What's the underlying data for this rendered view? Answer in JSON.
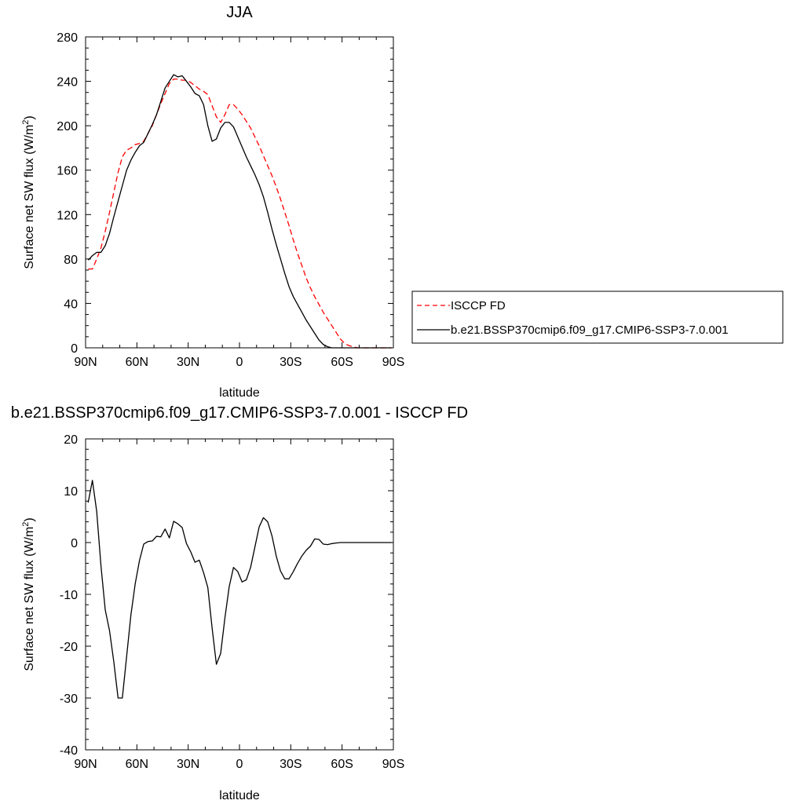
{
  "chart_data": [
    {
      "type": "line",
      "title": "JJA",
      "xlabel": "latitude",
      "ylabel": "Surface net SW flux (W/m²)",
      "xlim": [
        90,
        -90
      ],
      "ylim": [
        0,
        280
      ],
      "xticks": [
        90,
        60,
        30,
        0,
        -30,
        -60,
        -90
      ],
      "xtick_labels": [
        "90N",
        "60N",
        "30N",
        "0",
        "30S",
        "60S",
        "90S"
      ],
      "yticks": [
        0,
        40,
        80,
        120,
        160,
        200,
        240,
        280
      ],
      "ytick_labels": [
        "0",
        "40",
        "80",
        "120",
        "160",
        "200",
        "240",
        "280"
      ],
      "legend_position": "right",
      "series": [
        {
          "name": "ISCCP FD",
          "color": "#ff0000",
          "dash": "dashed",
          "x": [
            88.5,
            86,
            83.5,
            81,
            78.5,
            76,
            73.5,
            71,
            68.5,
            66,
            63.5,
            61,
            58.5,
            56,
            53.5,
            51,
            48.5,
            46,
            43.5,
            41,
            38.5,
            36,
            33.5,
            31,
            28.5,
            26,
            23.5,
            21,
            18.5,
            16,
            13.5,
            11,
            8.5,
            6,
            3.5,
            1,
            -1.5,
            -4,
            -6.5,
            -9,
            -11.5,
            -14,
            -16.5,
            -19,
            -21.5,
            -24,
            -26.5,
            -29,
            -31.5,
            -34,
            -36.5,
            -39,
            -41.5,
            -44,
            -46.5,
            -49,
            -51.5,
            -54,
            -56.5,
            -59,
            -61.5,
            -64,
            -66.5,
            -69,
            -71.5,
            -74,
            -76.5,
            -79,
            -81.5,
            -84,
            -86.5,
            -89
          ],
          "y": [
            71,
            71,
            80,
            90,
            105,
            122,
            140,
            158,
            172,
            178,
            180,
            183,
            184,
            186,
            193,
            200,
            210,
            220,
            229,
            238,
            242,
            242,
            241,
            241,
            239,
            236,
            233,
            231,
            228,
            218,
            208,
            203,
            210,
            219,
            219,
            215,
            210,
            204,
            198,
            190,
            182,
            173,
            164,
            155,
            145,
            134,
            122,
            110,
            97,
            85,
            74,
            63,
            54,
            46,
            39,
            32,
            26,
            20,
            14,
            8,
            4,
            2,
            1,
            0,
            0,
            0,
            0,
            0,
            0,
            0,
            0,
            0
          ]
        },
        {
          "name": "b.e21.BSSP370cmip6.f09_g17.CMIP6-SSP3-7.0.001",
          "color": "#000000",
          "dash": "solid",
          "x": [
            88.5,
            86,
            83.5,
            81,
            78.5,
            76,
            73.5,
            71,
            68.5,
            66,
            63.5,
            61,
            58.5,
            56,
            53.5,
            51,
            48.5,
            46,
            43.5,
            41,
            38.5,
            36,
            33.5,
            31,
            28.5,
            26,
            23.5,
            21,
            18.5,
            16,
            13.5,
            11,
            8.5,
            6,
            3.5,
            1,
            -1.5,
            -4,
            -6.5,
            -9,
            -11.5,
            -14,
            -16.5,
            -19,
            -21.5,
            -24,
            -26.5,
            -29,
            -31.5,
            -34,
            -36.5,
            -39,
            -41.5,
            -44,
            -46.5,
            -49,
            -51.5,
            -54,
            -56.5,
            -59,
            -61.5,
            -64,
            -66.5,
            -69,
            -71.5,
            -74,
            -76.5,
            -79,
            -81.5,
            -84,
            -86.5,
            -89
          ],
          "y": [
            79,
            83,
            86,
            86,
            92,
            103,
            118,
            132,
            146,
            160,
            169,
            176,
            182,
            185,
            193,
            201,
            210,
            222,
            234,
            240,
            246,
            244,
            245,
            240,
            235,
            229,
            227,
            219,
            200,
            186,
            188,
            198,
            203,
            203,
            199,
            190,
            181,
            172,
            164,
            156,
            147,
            136,
            122,
            107,
            93,
            80,
            67,
            55,
            46,
            39,
            32,
            25,
            19,
            13,
            7,
            3,
            1,
            0,
            0,
            0,
            0,
            0,
            0,
            0,
            0,
            0,
            0,
            0,
            0,
            0,
            0,
            0
          ]
        }
      ]
    },
    {
      "type": "line",
      "title": "b.e21.BSSP370cmip6.f09_g17.CMIP6-SSP3-7.0.001 - ISCCP FD",
      "xlabel": "latitude",
      "ylabel": "Surface net SW flux (W/m²)",
      "xlim": [
        90,
        -90
      ],
      "ylim": [
        -40,
        20
      ],
      "xticks": [
        90,
        60,
        30,
        0,
        -30,
        -60,
        -90
      ],
      "xtick_labels": [
        "90N",
        "60N",
        "30N",
        "0",
        "30S",
        "60S",
        "90S"
      ],
      "yticks": [
        -40,
        -30,
        -20,
        -10,
        0,
        10,
        20
      ],
      "ytick_labels": [
        "-40",
        "-30",
        "-20",
        "-10",
        "0",
        "10",
        "20"
      ],
      "series": [
        {
          "color": "#000000",
          "dash": "solid",
          "x": [
            88.5,
            86,
            83.5,
            81,
            78.5,
            76,
            73.5,
            71,
            68.5,
            66,
            63.5,
            61,
            58.5,
            56,
            53.5,
            51,
            48.5,
            46,
            43.5,
            41,
            38.5,
            36,
            33.5,
            31,
            28.5,
            26,
            23.5,
            21,
            18.5,
            16,
            13.5,
            11,
            8.5,
            6,
            3.5,
            1,
            -1.5,
            -4,
            -6.5,
            -9,
            -11.5,
            -14,
            -16.5,
            -19,
            -21.5,
            -24,
            -26.5,
            -29,
            -31.5,
            -34,
            -36.5,
            -39,
            -41.5,
            -44,
            -46.5,
            -49,
            -51.5,
            -54,
            -56.5,
            -59,
            -61.5,
            -64,
            -66.5,
            -69,
            -71.5,
            -74,
            -76.5,
            -79,
            -81.5,
            -84,
            -86.5,
            -89
          ],
          "y": [
            7.7,
            12,
            6,
            -4.5,
            -13,
            -17,
            -23,
            -30,
            -30,
            -22,
            -14,
            -8,
            -3.5,
            -0.3,
            0.2,
            0.3,
            1.2,
            1.1,
            2.6,
            0.9,
            4.1,
            3.6,
            2.9,
            -0.2,
            -1.8,
            -3.8,
            -3.4,
            -5.8,
            -8.7,
            -16.5,
            -23.5,
            -21.4,
            -14.5,
            -8.5,
            -4.8,
            -5.6,
            -7.6,
            -7.2,
            -4.8,
            -0.9,
            3,
            4.8,
            4,
            1.3,
            -2.6,
            -5.5,
            -7,
            -7,
            -5.6,
            -4,
            -2.6,
            -1.5,
            -0.7,
            0.7,
            0.6,
            -0.3,
            -0.4,
            -0.2,
            -0.1,
            0,
            0,
            0,
            0,
            0,
            0,
            0,
            0,
            0,
            0,
            0,
            0,
            0
          ]
        }
      ]
    }
  ]
}
